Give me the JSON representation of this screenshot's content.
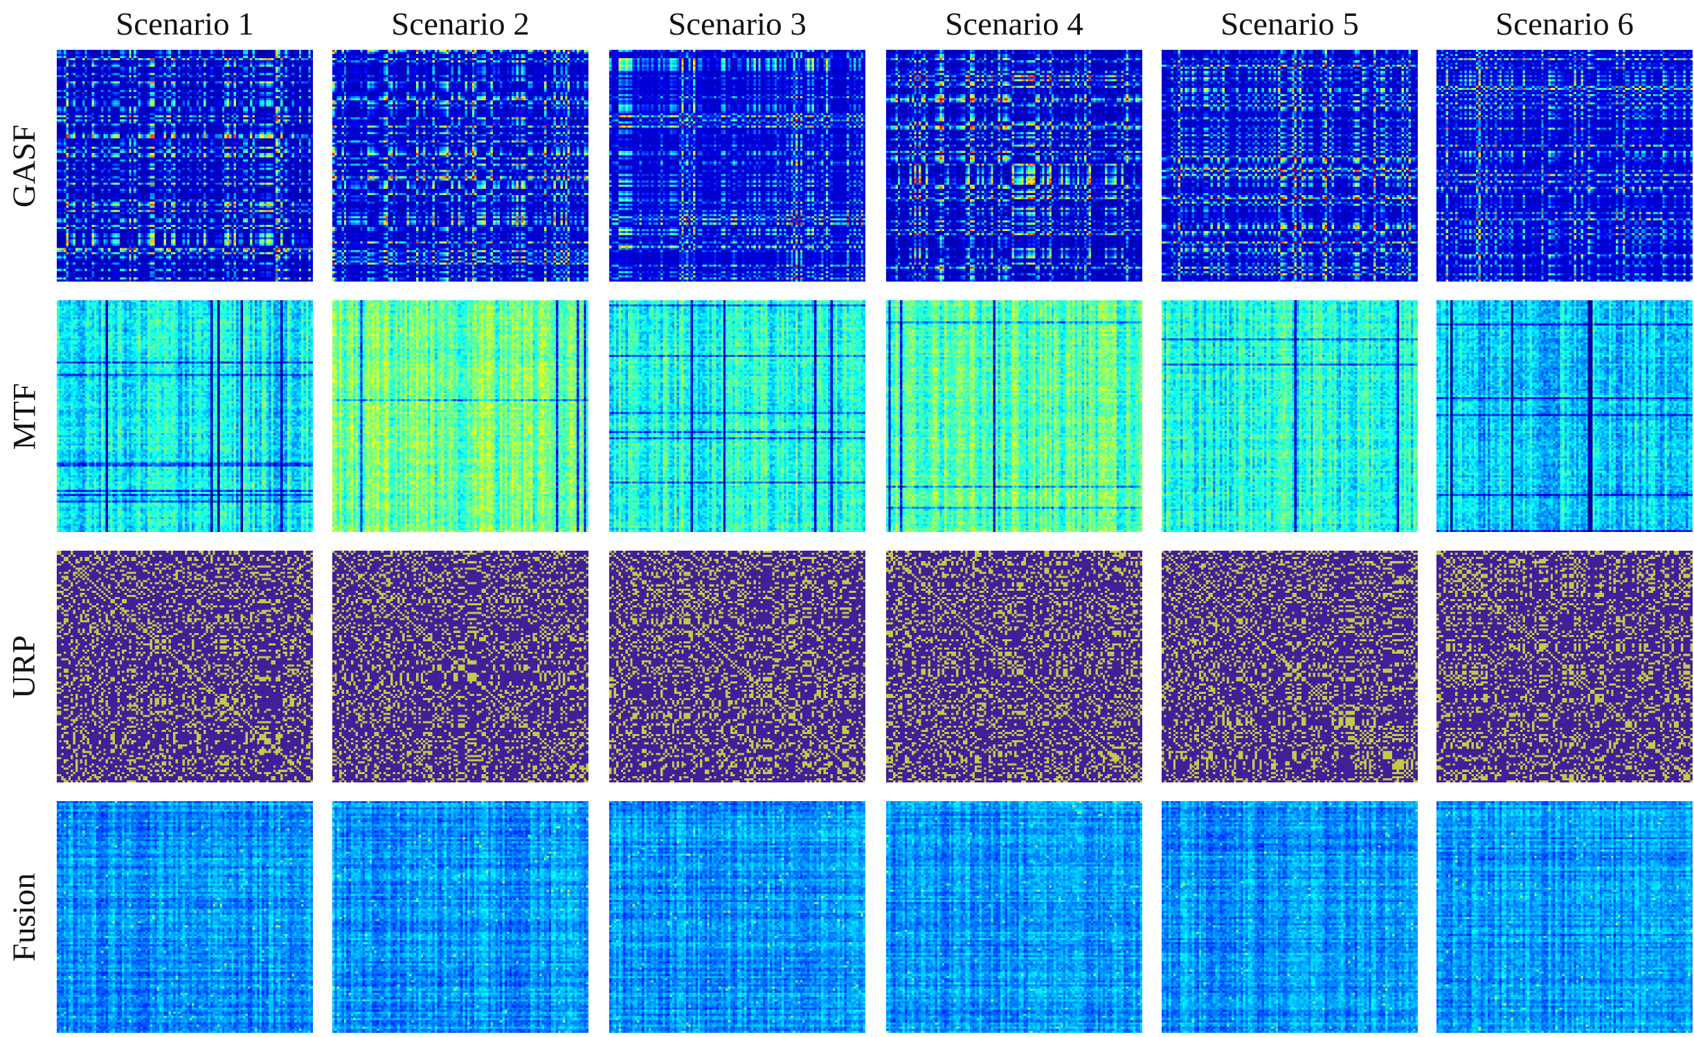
{
  "columns": [
    "Scenario 1",
    "Scenario 2",
    "Scenario 3",
    "Scenario 4",
    "Scenario 5",
    "Scenario 6"
  ],
  "rows": [
    {
      "label": "GASF",
      "colormap": "jet",
      "style": "gasf"
    },
    {
      "label": "MTF",
      "colormap": "jet",
      "style": "mtf"
    },
    {
      "label": "URP",
      "colormap": "viridis-binary",
      "style": "urp"
    },
    {
      "label": "Fusion",
      "colormap": "jet",
      "style": "fusion"
    }
  ],
  "colors": {
    "background": "#ffffff",
    "text": "#111111",
    "urp_low": "#3f1f9a",
    "urp_high": "#c7c84a"
  }
}
